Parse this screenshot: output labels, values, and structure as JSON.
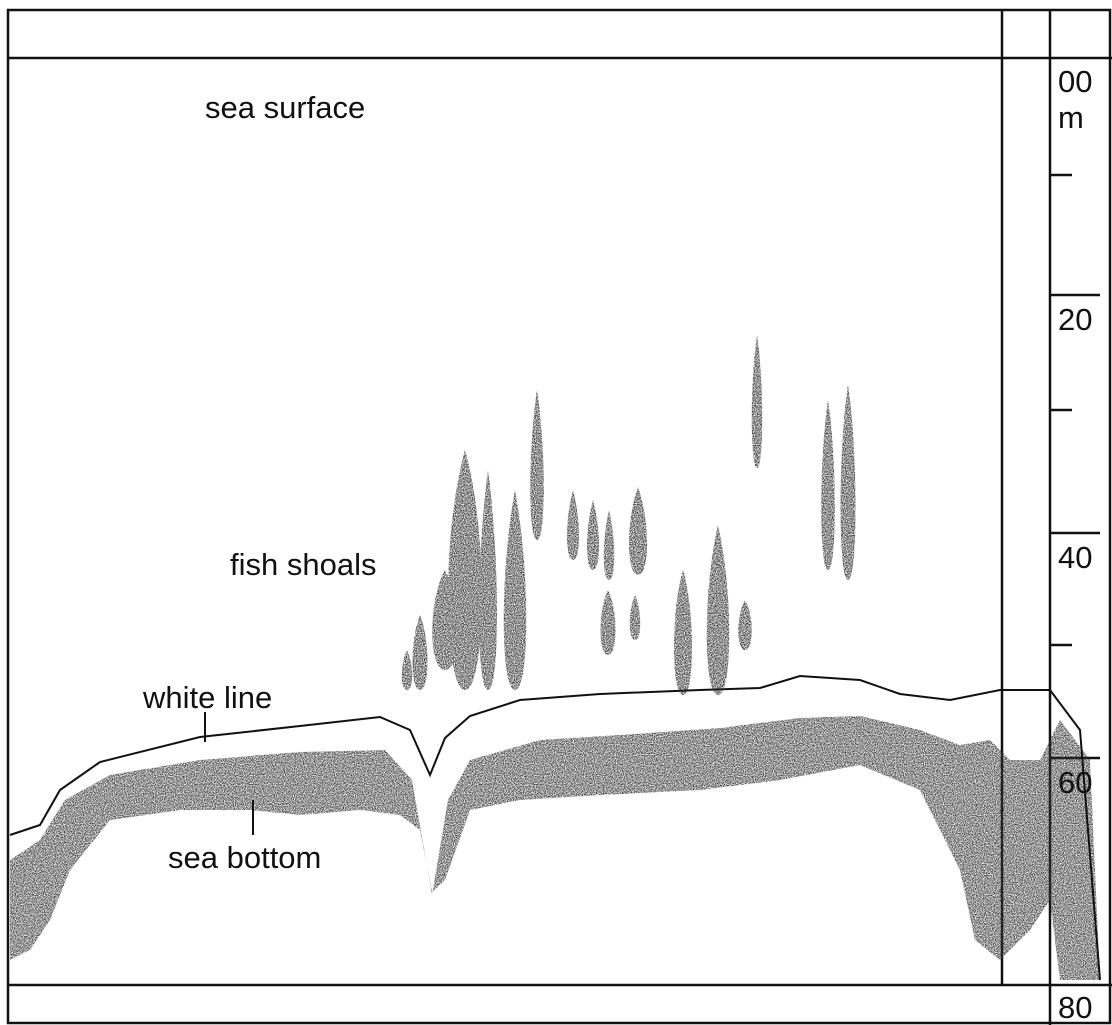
{
  "annotations": {
    "sea_surface": "sea surface",
    "fish_shoals": "fish shoals",
    "white_line": "white line",
    "sea_bottom": "sea bottom"
  },
  "depth_scale": {
    "top": "00",
    "unit": "m",
    "labels": [
      "20",
      "40",
      "60",
      "80"
    ]
  }
}
